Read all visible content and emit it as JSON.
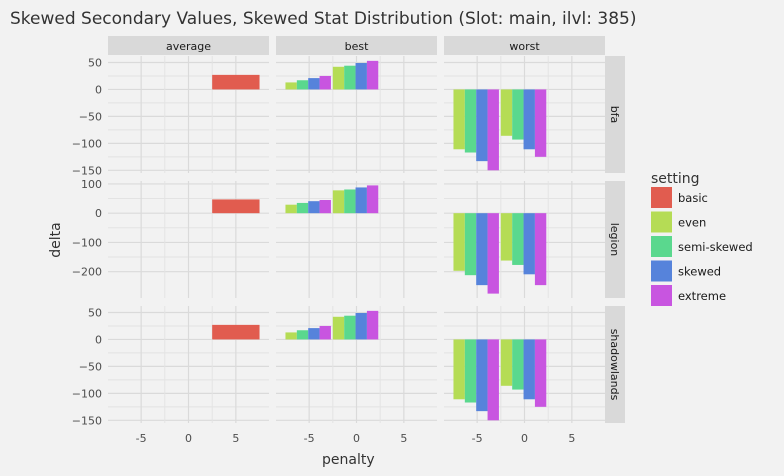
{
  "chart_data": {
    "type": "bar",
    "title": "Skewed Secondary Values, Skewed Stat Distribution (Slot: main, ilvl: 385)",
    "xlabel": "penalty",
    "ylabel": "delta",
    "facet_cols": [
      "average",
      "best",
      "worst"
    ],
    "facet_rows": [
      "bfa",
      "legion",
      "shadowlands"
    ],
    "x_ticks": [
      -5,
      0,
      5
    ],
    "xlim": [
      -8.5,
      8.5
    ],
    "y_axes": [
      {
        "row": "bfa",
        "ylim": [
          -155,
          62
        ],
        "ticks": [
          50,
          0,
          -50,
          -100,
          -150
        ]
      },
      {
        "row": "legion",
        "ylim": [
          -290,
          110
        ],
        "ticks": [
          100,
          0,
          -100,
          -200
        ]
      },
      {
        "row": "shadowlands",
        "ylim": [
          -155,
          62
        ],
        "ticks": [
          50,
          0,
          -50,
          -100,
          -150
        ]
      }
    ],
    "legend": {
      "title": "setting",
      "position": "right",
      "items": [
        {
          "name": "basic",
          "color": "#e15c4f"
        },
        {
          "name": "even",
          "color": "#b5dc55"
        },
        {
          "name": "semi-skewed",
          "color": "#5ad88e"
        },
        {
          "name": "skewed",
          "color": "#5683db"
        },
        {
          "name": "extreme",
          "color": "#c855e0"
        }
      ]
    },
    "series": [
      {
        "setting": "basic",
        "color": "#e15c4f",
        "bars": [
          {
            "row": "bfa",
            "col": "average",
            "x": 5,
            "width": 5,
            "value": 27
          },
          {
            "row": "legion",
            "col": "average",
            "x": 5,
            "width": 5,
            "value": 47
          },
          {
            "row": "shadowlands",
            "col": "average",
            "x": 5,
            "width": 5,
            "value": 27
          }
        ]
      },
      {
        "setting": "even",
        "color": "#b5dc55",
        "bars": [
          {
            "row": "bfa",
            "col": "best",
            "x": -6.9,
            "width": 1.2,
            "value": 13
          },
          {
            "row": "bfa",
            "col": "best",
            "x": -1.9,
            "width": 1.2,
            "value": 42
          },
          {
            "row": "bfa",
            "col": "worst",
            "x": -6.9,
            "width": 1.2,
            "value": -111
          },
          {
            "row": "bfa",
            "col": "worst",
            "x": -1.9,
            "width": 1.2,
            "value": -86
          },
          {
            "row": "legion",
            "col": "best",
            "x": -6.9,
            "width": 1.2,
            "value": 29
          },
          {
            "row": "legion",
            "col": "best",
            "x": -1.9,
            "width": 1.2,
            "value": 78
          },
          {
            "row": "legion",
            "col": "worst",
            "x": -6.9,
            "width": 1.2,
            "value": -197
          },
          {
            "row": "legion",
            "col": "worst",
            "x": -1.9,
            "width": 1.2,
            "value": -162
          },
          {
            "row": "shadowlands",
            "col": "best",
            "x": -6.9,
            "width": 1.2,
            "value": 13
          },
          {
            "row": "shadowlands",
            "col": "best",
            "x": -1.9,
            "width": 1.2,
            "value": 42
          },
          {
            "row": "shadowlands",
            "col": "worst",
            "x": -6.9,
            "width": 1.2,
            "value": -111
          },
          {
            "row": "shadowlands",
            "col": "worst",
            "x": -1.9,
            "width": 1.2,
            "value": -86
          }
        ]
      },
      {
        "setting": "semi-skewed",
        "color": "#5ad88e",
        "bars": [
          {
            "row": "bfa",
            "col": "best",
            "x": -5.7,
            "width": 1.2,
            "value": 17
          },
          {
            "row": "bfa",
            "col": "best",
            "x": -0.7,
            "width": 1.2,
            "value": 44
          },
          {
            "row": "bfa",
            "col": "worst",
            "x": -5.7,
            "width": 1.2,
            "value": -117
          },
          {
            "row": "bfa",
            "col": "worst",
            "x": -0.7,
            "width": 1.2,
            "value": -93
          },
          {
            "row": "legion",
            "col": "best",
            "x": -5.7,
            "width": 1.2,
            "value": 35
          },
          {
            "row": "legion",
            "col": "best",
            "x": -0.7,
            "width": 1.2,
            "value": 81
          },
          {
            "row": "legion",
            "col": "worst",
            "x": -5.7,
            "width": 1.2,
            "value": -212
          },
          {
            "row": "legion",
            "col": "worst",
            "x": -0.7,
            "width": 1.2,
            "value": -177
          },
          {
            "row": "shadowlands",
            "col": "best",
            "x": -5.7,
            "width": 1.2,
            "value": 17
          },
          {
            "row": "shadowlands",
            "col": "best",
            "x": -0.7,
            "width": 1.2,
            "value": 44
          },
          {
            "row": "shadowlands",
            "col": "worst",
            "x": -5.7,
            "width": 1.2,
            "value": -117
          },
          {
            "row": "shadowlands",
            "col": "worst",
            "x": -0.7,
            "width": 1.2,
            "value": -93
          }
        ]
      },
      {
        "setting": "skewed",
        "color": "#5683db",
        "bars": [
          {
            "row": "bfa",
            "col": "best",
            "x": -4.5,
            "width": 1.2,
            "value": 21
          },
          {
            "row": "bfa",
            "col": "best",
            "x": 0.5,
            "width": 1.2,
            "value": 49
          },
          {
            "row": "bfa",
            "col": "worst",
            "x": -4.5,
            "width": 1.2,
            "value": -133
          },
          {
            "row": "bfa",
            "col": "worst",
            "x": 0.5,
            "width": 1.2,
            "value": -111
          },
          {
            "row": "legion",
            "col": "best",
            "x": -4.5,
            "width": 1.2,
            "value": 41
          },
          {
            "row": "legion",
            "col": "best",
            "x": 0.5,
            "width": 1.2,
            "value": 88
          },
          {
            "row": "legion",
            "col": "worst",
            "x": -4.5,
            "width": 1.2,
            "value": -246
          },
          {
            "row": "legion",
            "col": "worst",
            "x": 0.5,
            "width": 1.2,
            "value": -209
          },
          {
            "row": "shadowlands",
            "col": "best",
            "x": -4.5,
            "width": 1.2,
            "value": 21
          },
          {
            "row": "shadowlands",
            "col": "best",
            "x": 0.5,
            "width": 1.2,
            "value": 49
          },
          {
            "row": "shadowlands",
            "col": "worst",
            "x": -4.5,
            "width": 1.2,
            "value": -133
          },
          {
            "row": "shadowlands",
            "col": "worst",
            "x": 0.5,
            "width": 1.2,
            "value": -111
          }
        ]
      },
      {
        "setting": "extreme",
        "color": "#c855e0",
        "bars": [
          {
            "row": "bfa",
            "col": "best",
            "x": -3.3,
            "width": 1.2,
            "value": 25
          },
          {
            "row": "bfa",
            "col": "best",
            "x": 1.7,
            "width": 1.2,
            "value": 53
          },
          {
            "row": "bfa",
            "col": "worst",
            "x": -3.3,
            "width": 1.2,
            "value": -150
          },
          {
            "row": "bfa",
            "col": "worst",
            "x": 1.7,
            "width": 1.2,
            "value": -125
          },
          {
            "row": "legion",
            "col": "best",
            "x": -3.3,
            "width": 1.2,
            "value": 45
          },
          {
            "row": "legion",
            "col": "best",
            "x": 1.7,
            "width": 1.2,
            "value": 95
          },
          {
            "row": "legion",
            "col": "worst",
            "x": -3.3,
            "width": 1.2,
            "value": -275
          },
          {
            "row": "legion",
            "col": "worst",
            "x": 1.7,
            "width": 1.2,
            "value": -246
          },
          {
            "row": "shadowlands",
            "col": "best",
            "x": -3.3,
            "width": 1.2,
            "value": 25
          },
          {
            "row": "shadowlands",
            "col": "best",
            "x": 1.7,
            "width": 1.2,
            "value": 53
          },
          {
            "row": "shadowlands",
            "col": "worst",
            "x": -3.3,
            "width": 1.2,
            "value": -150
          },
          {
            "row": "shadowlands",
            "col": "worst",
            "x": 1.7,
            "width": 1.2,
            "value": -125
          }
        ]
      }
    ]
  }
}
